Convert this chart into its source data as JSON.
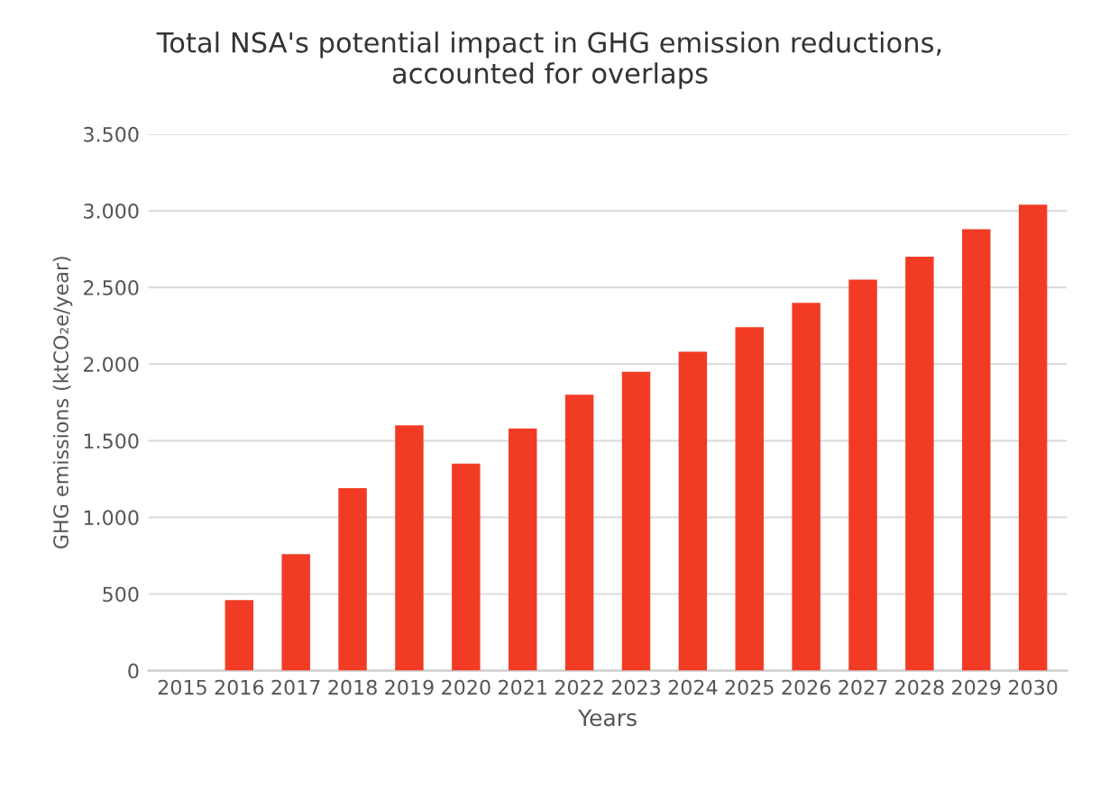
{
  "chart_data": {
    "type": "bar",
    "title": "Total NSA's potential impact in GHG emission reductions,\naccounted for overlaps",
    "xlabel": "Years",
    "ylabel": "GHG emissions (ktCO₂e/year)",
    "categories": [
      "2015",
      "2016",
      "2017",
      "2018",
      "2019",
      "2020",
      "2021",
      "2022",
      "2023",
      "2024",
      "2025",
      "2026",
      "2027",
      "2028",
      "2029",
      "2030"
    ],
    "values": [
      0,
      460,
      760,
      1190,
      1600,
      1350,
      1580,
      1800,
      1950,
      2080,
      2240,
      2400,
      2550,
      2700,
      2880,
      3040
    ],
    "color": "#f23b24",
    "ylim": [
      0,
      3500
    ],
    "yticks": [
      0,
      500,
      {
        "value": 1000,
        "label": "1.000"
      },
      {
        "value": 1500,
        "label": "1.500"
      },
      {
        "value": 2000,
        "label": "2.000"
      },
      {
        "value": 2500,
        "label": "2.500"
      },
      {
        "value": 3000,
        "label": "3.000"
      },
      {
        "value": 3500,
        "label": "3.500"
      }
    ],
    "grid": "y",
    "legend": false
  }
}
